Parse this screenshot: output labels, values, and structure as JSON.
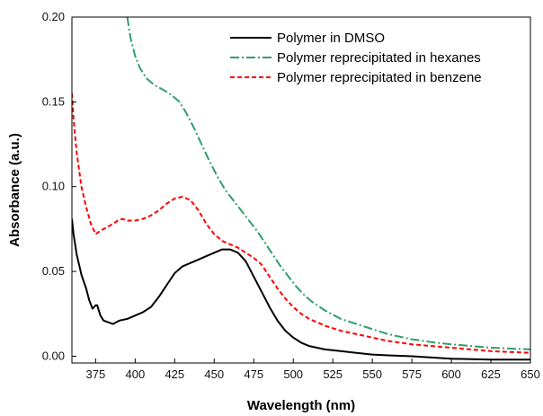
{
  "chart_data": {
    "type": "line",
    "title": "",
    "xlabel": "Wavelength (nm)",
    "ylabel": "Absorbance (a.u.)",
    "xlim": [
      360,
      650
    ],
    "ylim": [
      -0.004,
      0.2
    ],
    "x_ticks": [
      "375",
      "400",
      "425",
      "450",
      "475",
      "500",
      "525",
      "550",
      "575",
      "600",
      "625",
      "650"
    ],
    "y_ticks": [
      "0.00",
      "0.05",
      "0.10",
      "0.15",
      "0.20"
    ],
    "grid": false,
    "legend_position": "top-right",
    "series": [
      {
        "name": "Polymer in DMSO",
        "color": "#000000",
        "style": "solid",
        "points": [
          [
            360,
            0.081
          ],
          [
            361,
            0.072
          ],
          [
            363,
            0.06
          ],
          [
            366,
            0.048
          ],
          [
            369,
            0.04
          ],
          [
            371,
            0.033
          ],
          [
            373,
            0.028
          ],
          [
            375,
            0.03
          ],
          [
            376,
            0.03
          ],
          [
            378,
            0.024
          ],
          [
            380,
            0.021
          ],
          [
            383,
            0.02
          ],
          [
            386,
            0.019
          ],
          [
            390,
            0.021
          ],
          [
            395,
            0.022
          ],
          [
            400,
            0.024
          ],
          [
            405,
            0.026
          ],
          [
            410,
            0.029
          ],
          [
            415,
            0.035
          ],
          [
            420,
            0.042
          ],
          [
            425,
            0.049
          ],
          [
            430,
            0.053
          ],
          [
            435,
            0.055
          ],
          [
            440,
            0.057
          ],
          [
            445,
            0.059
          ],
          [
            450,
            0.061
          ],
          [
            455,
            0.063
          ],
          [
            460,
            0.063
          ],
          [
            465,
            0.061
          ],
          [
            470,
            0.056
          ],
          [
            475,
            0.047
          ],
          [
            480,
            0.038
          ],
          [
            485,
            0.029
          ],
          [
            490,
            0.021
          ],
          [
            495,
            0.015
          ],
          [
            500,
            0.011
          ],
          [
            505,
            0.008
          ],
          [
            510,
            0.006
          ],
          [
            520,
            0.004
          ],
          [
            530,
            0.003
          ],
          [
            540,
            0.002
          ],
          [
            550,
            0.001
          ],
          [
            560,
            0.0005
          ],
          [
            575,
            0.0
          ],
          [
            600,
            -0.0015
          ],
          [
            625,
            -0.002
          ],
          [
            650,
            -0.002
          ]
        ]
      },
      {
        "name": "Polymer reprecipitated in hexanes",
        "color": "#2e9e6a",
        "style": "dashdot",
        "points": [
          [
            395,
            0.2
          ],
          [
            397,
            0.188
          ],
          [
            400,
            0.177
          ],
          [
            403,
            0.17
          ],
          [
            407,
            0.164
          ],
          [
            412,
            0.16
          ],
          [
            418,
            0.157
          ],
          [
            423,
            0.154
          ],
          [
            428,
            0.15
          ],
          [
            432,
            0.144
          ],
          [
            437,
            0.135
          ],
          [
            442,
            0.125
          ],
          [
            447,
            0.115
          ],
          [
            452,
            0.106
          ],
          [
            457,
            0.098
          ],
          [
            462,
            0.092
          ],
          [
            467,
            0.086
          ],
          [
            472,
            0.08
          ],
          [
            477,
            0.074
          ],
          [
            482,
            0.067
          ],
          [
            487,
            0.06
          ],
          [
            492,
            0.053
          ],
          [
            497,
            0.047
          ],
          [
            502,
            0.041
          ],
          [
            507,
            0.036
          ],
          [
            512,
            0.032
          ],
          [
            520,
            0.027
          ],
          [
            530,
            0.022
          ],
          [
            540,
            0.019
          ],
          [
            550,
            0.016
          ],
          [
            560,
            0.013
          ],
          [
            575,
            0.01
          ],
          [
            590,
            0.008
          ],
          [
            600,
            0.007
          ],
          [
            625,
            0.005
          ],
          [
            650,
            0.004
          ]
        ]
      },
      {
        "name": "Polymer reprecipitated in benzene",
        "color": "#ff0000",
        "style": "dashed",
        "points": [
          [
            360,
            0.155
          ],
          [
            361,
            0.14
          ],
          [
            363,
            0.12
          ],
          [
            366,
            0.1
          ],
          [
            369,
            0.088
          ],
          [
            372,
            0.078
          ],
          [
            375,
            0.072
          ],
          [
            378,
            0.074
          ],
          [
            382,
            0.076
          ],
          [
            386,
            0.078
          ],
          [
            389,
            0.08
          ],
          [
            392,
            0.081
          ],
          [
            395,
            0.08
          ],
          [
            400,
            0.08
          ],
          [
            405,
            0.081
          ],
          [
            410,
            0.083
          ],
          [
            415,
            0.086
          ],
          [
            420,
            0.09
          ],
          [
            425,
            0.093
          ],
          [
            430,
            0.094
          ],
          [
            435,
            0.092
          ],
          [
            440,
            0.086
          ],
          [
            445,
            0.078
          ],
          [
            450,
            0.072
          ],
          [
            455,
            0.068
          ],
          [
            460,
            0.066
          ],
          [
            465,
            0.064
          ],
          [
            470,
            0.061
          ],
          [
            475,
            0.058
          ],
          [
            480,
            0.054
          ],
          [
            485,
            0.047
          ],
          [
            490,
            0.04
          ],
          [
            495,
            0.034
          ],
          [
            500,
            0.029
          ],
          [
            505,
            0.025
          ],
          [
            510,
            0.022
          ],
          [
            520,
            0.018
          ],
          [
            530,
            0.015
          ],
          [
            540,
            0.013
          ],
          [
            550,
            0.011
          ],
          [
            560,
            0.009
          ],
          [
            575,
            0.007
          ],
          [
            600,
            0.005
          ],
          [
            625,
            0.003
          ],
          [
            650,
            0.002
          ]
        ]
      }
    ]
  }
}
